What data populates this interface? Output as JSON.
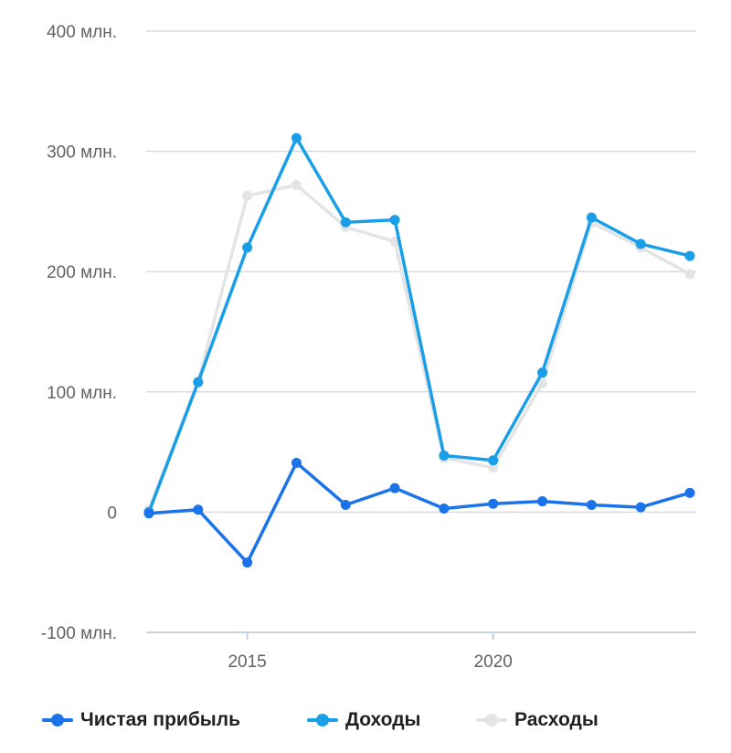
{
  "chart_data": {
    "type": "line",
    "x": [
      2013,
      2014,
      2015,
      2016,
      2017,
      2018,
      2019,
      2020,
      2021,
      2022,
      2023,
      2024
    ],
    "xticks": [
      2015,
      2020
    ],
    "xtick_labels": [
      "2015",
      "2020"
    ],
    "ylim": [
      -100,
      400
    ],
    "yticks": [
      -100,
      0,
      100,
      200,
      300,
      400
    ],
    "ytick_labels": [
      "-100 млн.",
      "0",
      "100 млн.",
      "200 млн.",
      "300 млн.",
      "400 млн."
    ],
    "grid": true,
    "legend_position": "bottom",
    "series": [
      {
        "name": "Чистая прибыль",
        "color": "#1a73e8",
        "values": [
          -1,
          2,
          -42,
          41,
          6,
          20,
          3,
          7,
          9,
          6,
          4,
          16
        ]
      },
      {
        "name": "Доходы",
        "color": "#1a9ee8",
        "values": [
          0,
          108,
          220,
          311,
          241,
          243,
          47,
          43,
          116,
          245,
          223,
          213
        ]
      },
      {
        "name": "Расходы",
        "color": "#e3e4e6",
        "values": [
          2,
          109,
          263,
          272,
          237,
          225,
          45,
          37,
          107,
          241,
          220,
          198
        ]
      }
    ]
  }
}
